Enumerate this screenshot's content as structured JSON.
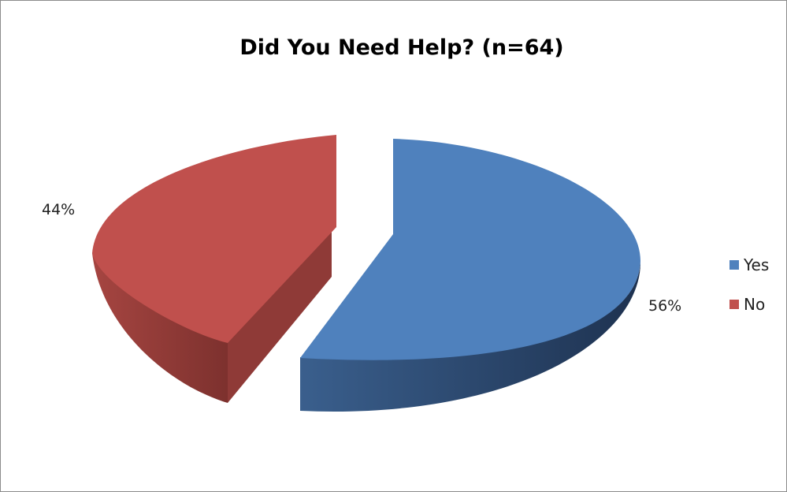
{
  "chart_data": {
    "type": "pie",
    "title": "Did You Need Help? (n=64)",
    "categories": [
      "Yes",
      "No"
    ],
    "values": [
      56,
      44
    ],
    "data_labels": [
      "56%",
      "44%"
    ],
    "colors": [
      "#4f81bd",
      "#c0504d"
    ],
    "style": "3d-exploded",
    "legend_position": "right"
  }
}
